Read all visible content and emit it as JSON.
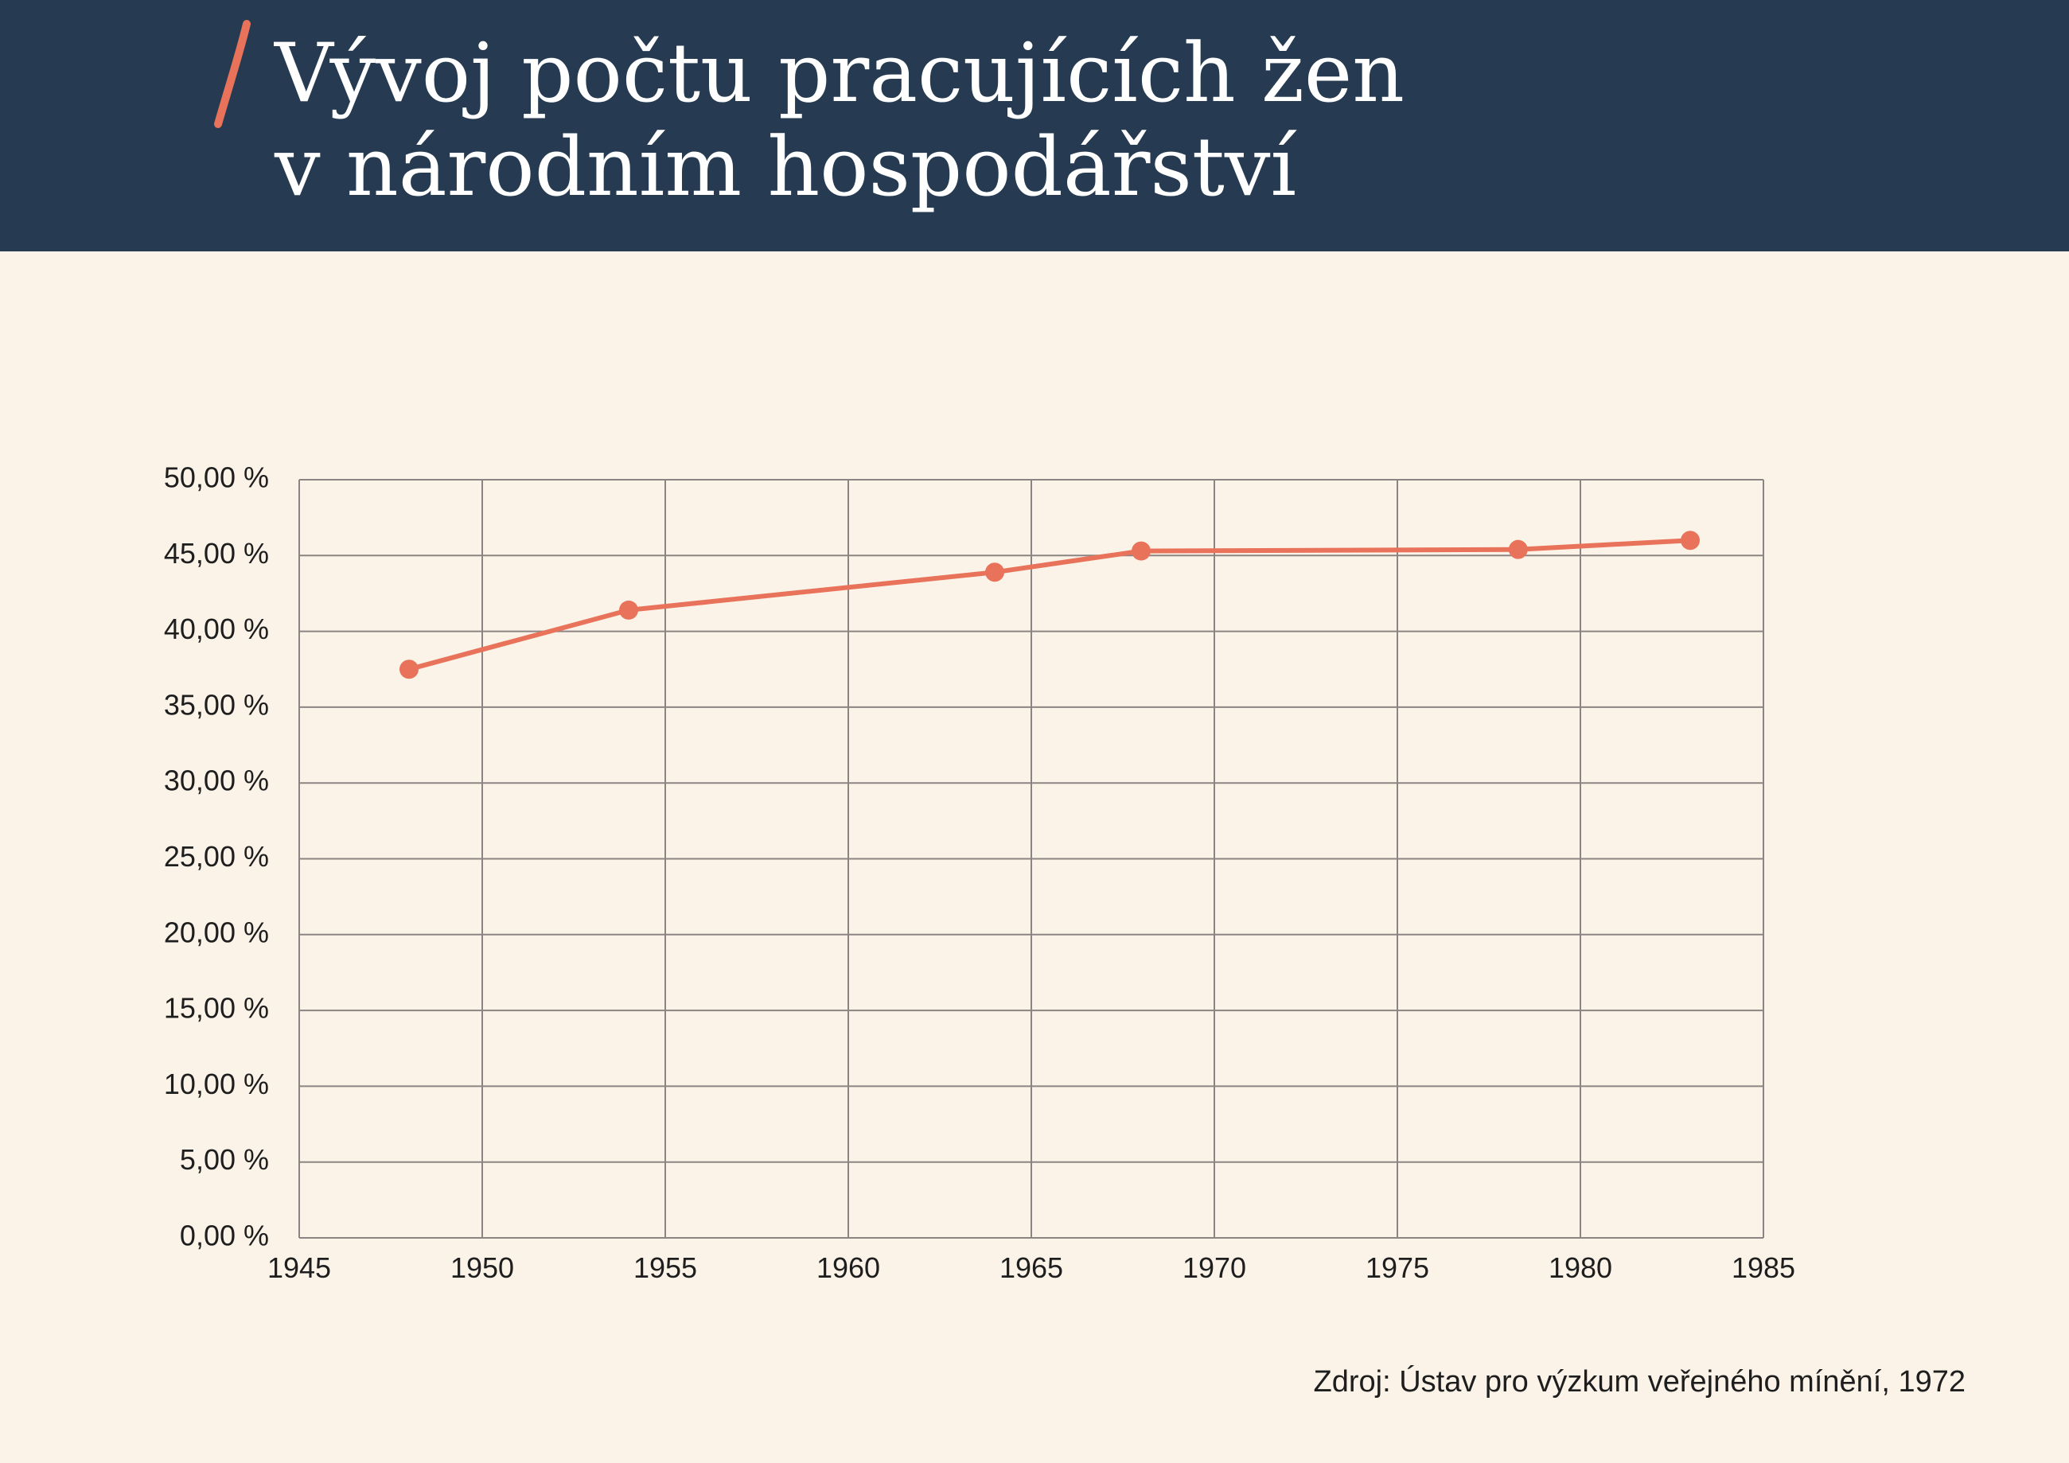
{
  "header": {
    "title_line1": "Vývoj počtu pracujících žen",
    "title_line2": "v národním hospodářství",
    "accent_color": "#e8735a",
    "background_color": "#263b52"
  },
  "source": "Zdroj: Ústav pro výzkum veřejného mínění, 1972",
  "chart_data": {
    "type": "line",
    "title": "Vývoj počtu pracujících žen v národním hospodářství",
    "xlabel": "",
    "ylabel": "",
    "xlim": [
      1945,
      1985
    ],
    "ylim": [
      0,
      50
    ],
    "x_ticks": [
      1945,
      1950,
      1955,
      1960,
      1965,
      1970,
      1975,
      1980,
      1985
    ],
    "x_tick_labels": [
      "1945",
      "1950",
      "1955",
      "1960",
      "1965",
      "1970",
      "1975",
      "1980",
      "1985"
    ],
    "y_ticks": [
      0,
      5,
      10,
      15,
      20,
      25,
      30,
      35,
      40,
      45,
      50
    ],
    "y_tick_labels": [
      "0,00 %",
      "5,00 %",
      "10,00 %",
      "15,00 %",
      "20,00 %",
      "25,00 %",
      "30,00 %",
      "35,00 %",
      "40,00 %",
      "45,00 %",
      "50,00 %"
    ],
    "grid": true,
    "legend": "none",
    "line_color": "#e8735a",
    "grid_color": "#8c8482",
    "series": [
      {
        "x": [
          1948,
          1954,
          1964,
          1968,
          1978.3,
          1983
        ],
        "values": [
          37.5,
          41.4,
          43.9,
          45.3,
          45.4,
          46.0
        ]
      }
    ]
  }
}
